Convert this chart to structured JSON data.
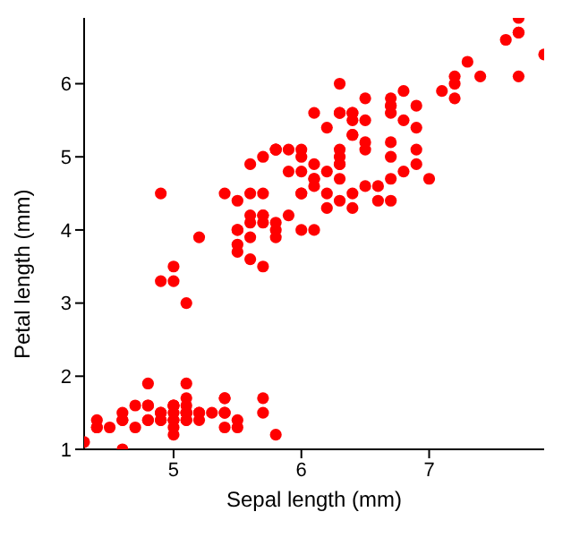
{
  "chart_data": {
    "type": "scatter",
    "xlabel": "Sepal length (mm)",
    "ylabel": "Petal length (mm)",
    "xlim": [
      4.3,
      7.9
    ],
    "ylim": [
      1,
      6.9
    ],
    "xticks": [
      5,
      6,
      7
    ],
    "yticks": [
      1,
      2,
      3,
      4,
      5,
      6
    ],
    "grid": false,
    "legend": false,
    "marker": "circle",
    "x": [
      5.1,
      4.9,
      4.7,
      4.6,
      5.0,
      5.4,
      4.6,
      5.0,
      4.4,
      4.9,
      5.4,
      4.8,
      4.8,
      4.3,
      5.8,
      5.7,
      5.4,
      5.1,
      5.7,
      5.1,
      5.4,
      5.1,
      4.6,
      5.1,
      4.8,
      5.0,
      5.0,
      5.2,
      5.2,
      4.7,
      4.8,
      5.4,
      5.2,
      5.5,
      4.9,
      5.0,
      5.5,
      4.9,
      4.4,
      5.1,
      5.0,
      4.5,
      4.4,
      5.0,
      5.1,
      4.8,
      5.1,
      4.6,
      5.3,
      5.0,
      7.0,
      6.4,
      6.9,
      5.5,
      6.5,
      5.7,
      6.3,
      4.9,
      6.6,
      5.2,
      5.0,
      5.9,
      6.0,
      6.1,
      5.6,
      6.7,
      5.6,
      5.8,
      6.2,
      5.6,
      5.9,
      6.1,
      6.3,
      6.1,
      6.4,
      6.6,
      6.8,
      6.7,
      6.0,
      5.7,
      5.5,
      5.5,
      5.8,
      6.0,
      5.4,
      6.0,
      6.7,
      6.3,
      5.6,
      5.5,
      5.5,
      6.1,
      5.8,
      5.0,
      5.6,
      5.7,
      5.7,
      6.2,
      5.1,
      5.7,
      6.3,
      5.8,
      7.1,
      6.3,
      6.5,
      7.6,
      4.9,
      7.3,
      6.7,
      7.2,
      6.5,
      6.4,
      6.8,
      5.7,
      5.8,
      6.4,
      6.5,
      7.7,
      7.7,
      6.0,
      6.9,
      5.6,
      7.7,
      6.3,
      6.7,
      7.2,
      6.2,
      6.1,
      6.4,
      7.2,
      7.4,
      7.9,
      6.4,
      6.3,
      6.1,
      7.7,
      6.3,
      6.4,
      6.0,
      6.9,
      6.7,
      6.9,
      5.8,
      6.8,
      6.7,
      6.7,
      6.3,
      6.5,
      6.2,
      5.9
    ],
    "series": [
      {
        "color": "#ff0000",
        "values": [
          1.4,
          1.4,
          1.3,
          1.5,
          1.4,
          1.7,
          1.4,
          1.5,
          1.4,
          1.5,
          1.5,
          1.6,
          1.4,
          1.1,
          1.2,
          1.5,
          1.3,
          1.4,
          1.7,
          1.5,
          1.7,
          1.5,
          1.0,
          1.7,
          1.9,
          1.6,
          1.6,
          1.5,
          1.4,
          1.6,
          1.6,
          1.5,
          1.5,
          1.4,
          1.5,
          1.2,
          1.3,
          1.4,
          1.3,
          1.5,
          1.3,
          1.3,
          1.3,
          1.6,
          1.9,
          1.4,
          1.6,
          1.4,
          1.5,
          1.4,
          4.7,
          4.5,
          4.9,
          4.0,
          4.6,
          4.5,
          4.7,
          3.3,
          4.6,
          3.9,
          3.5,
          4.2,
          4.0,
          4.7,
          3.6,
          4.4,
          4.5,
          4.1,
          4.5,
          3.9,
          4.8,
          4.0,
          4.9,
          4.7,
          4.3,
          4.4,
          4.8,
          5.0,
          4.5,
          3.5,
          3.8,
          3.7,
          3.9,
          5.1,
          4.5,
          4.5,
          4.7,
          4.4,
          4.1,
          4.0,
          4.4,
          4.6,
          4.0,
          3.3,
          4.2,
          4.2,
          4.2,
          4.3,
          3.0,
          4.1,
          6.0,
          5.1,
          5.9,
          5.6,
          5.8,
          6.6,
          4.5,
          6.3,
          5.8,
          6.1,
          5.1,
          5.3,
          5.5,
          5.0,
          5.1,
          5.3,
          5.5,
          6.7,
          6.9,
          5.0,
          5.7,
          4.9,
          6.7,
          4.9,
          5.7,
          6.0,
          4.8,
          4.9,
          5.6,
          5.8,
          6.1,
          6.4,
          5.6,
          5.1,
          5.6,
          6.1,
          5.6,
          5.5,
          4.8,
          5.4,
          5.6,
          5.1,
          5.1,
          5.9,
          5.7,
          5.2,
          5.0,
          5.2,
          5.4,
          5.1
        ]
      }
    ]
  }
}
